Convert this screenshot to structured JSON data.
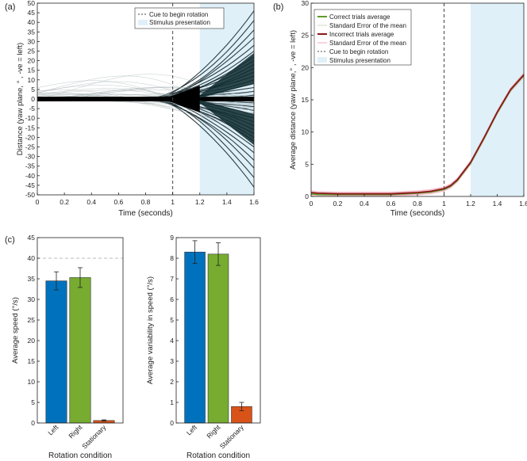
{
  "chart_data": [
    {
      "panel": "(a)",
      "type": "line",
      "xlabel": "Time (seconds)",
      "ylabel": "Distance (yaw plane, ° , -ve = left)",
      "xlim": [
        0,
        1.6
      ],
      "ylim": [
        -50,
        50
      ],
      "xticks": [
        "0",
        "0.2",
        "0.4",
        "0.6",
        "0.8",
        "1",
        "1.2",
        "1.4",
        "1.6"
      ],
      "yticks": [
        "-50",
        "-45",
        "-40",
        "-35",
        "-30",
        "-25",
        "-20",
        "-15",
        "-10",
        "-5",
        "0",
        "5",
        "10",
        "15",
        "20",
        "25",
        "30",
        "35",
        "40",
        "45",
        "50"
      ],
      "cue_time": 1.0,
      "stimulus_window": [
        1.2,
        1.6
      ],
      "legend": [
        "Cue to begin rotation",
        "Stimulus presentation"
      ],
      "series_description": "individual trial trajectories",
      "trajectory_end_values": [
        46,
        41,
        36,
        32,
        28,
        25,
        22,
        20,
        18,
        16,
        14,
        12,
        10,
        8,
        6,
        4,
        2,
        1,
        -1,
        -2,
        -4,
        -6,
        -8,
        -10,
        -12,
        -14,
        -16,
        -18,
        -20,
        -22,
        -25,
        -28,
        -32,
        -36,
        -41,
        -46
      ]
    },
    {
      "panel": "(b)",
      "type": "line",
      "xlabel": "Time (seconds)",
      "ylabel": "Average distance (yaw plane,° , -ve = left)",
      "xlim": [
        0,
        1.6
      ],
      "ylim": [
        0,
        30
      ],
      "xticks": [
        "0",
        "0.2",
        "0.4",
        "0.6",
        "0.8",
        "1",
        "1.2",
        "1.4",
        "1.6"
      ],
      "yticks": [
        "0",
        "5",
        "10",
        "15",
        "20",
        "25",
        "30"
      ],
      "cue_time": 1.0,
      "stimulus_window": [
        1.2,
        1.6
      ],
      "legend": [
        "Correct trials average",
        "Standard Error of the mean",
        "Incorrect trials average",
        "Standard Error of the mean",
        "Cue to begin rotation",
        "Stimulus presentation"
      ],
      "series": [
        {
          "name": "Correct trials average",
          "x": [
            0,
            0.05,
            0.2,
            0.4,
            0.6,
            0.8,
            0.9,
            1.0,
            1.05,
            1.1,
            1.2,
            1.3,
            1.4,
            1.5,
            1.6
          ],
          "values": [
            0.4,
            0.3,
            0.3,
            0.3,
            0.3,
            0.5,
            0.7,
            1.1,
            1.6,
            2.5,
            5.2,
            9.0,
            13.0,
            16.5,
            18.8
          ]
        },
        {
          "name": "Incorrect trials average",
          "x": [
            0,
            0.05,
            0.2,
            0.4,
            0.6,
            0.8,
            0.9,
            1.0,
            1.05,
            1.1,
            1.2,
            1.3,
            1.4,
            1.5,
            1.6
          ],
          "values": [
            0.6,
            0.5,
            0.4,
            0.4,
            0.4,
            0.6,
            0.8,
            1.2,
            1.7,
            2.6,
            5.3,
            9.1,
            13.1,
            16.6,
            18.9
          ]
        }
      ]
    },
    {
      "panel": "(c)",
      "type": "bar",
      "xlabel": "Rotation condition",
      "ylabel": "Average speed (°/s)",
      "categories": [
        "Left",
        "Right",
        "Stationary"
      ],
      "values": [
        34.5,
        35.3,
        0.6
      ],
      "errors": [
        2.2,
        2.4,
        0.15
      ],
      "colors": [
        "#0072bd",
        "#77ac30",
        "#d95319"
      ],
      "reference_line": 40,
      "ylim": [
        0,
        45
      ],
      "yticks": [
        "0",
        "5",
        "10",
        "15",
        "20",
        "25",
        "30",
        "35",
        "40",
        "45"
      ]
    },
    {
      "panel": "(c)",
      "type": "bar",
      "xlabel": "Rotation condition",
      "ylabel": "Average variability in speed (°/s)",
      "categories": [
        "Left",
        "Right",
        "Stationary"
      ],
      "values": [
        8.3,
        8.2,
        0.8
      ],
      "errors": [
        0.55,
        0.55,
        0.2
      ],
      "colors": [
        "#0072bd",
        "#77ac30",
        "#d95319"
      ],
      "ylim": [
        0,
        9
      ],
      "yticks": [
        "0",
        "1",
        "2",
        "3",
        "4",
        "5",
        "6",
        "7",
        "8",
        "9"
      ]
    }
  ],
  "colors": {
    "stimulus_fill": "#dff0f8",
    "trajectory_dark": "#0b1f24",
    "correct_line": "#5a9c2a",
    "incorrect_line": "#8b1a1a",
    "sem_band": "#f0a8b8"
  }
}
